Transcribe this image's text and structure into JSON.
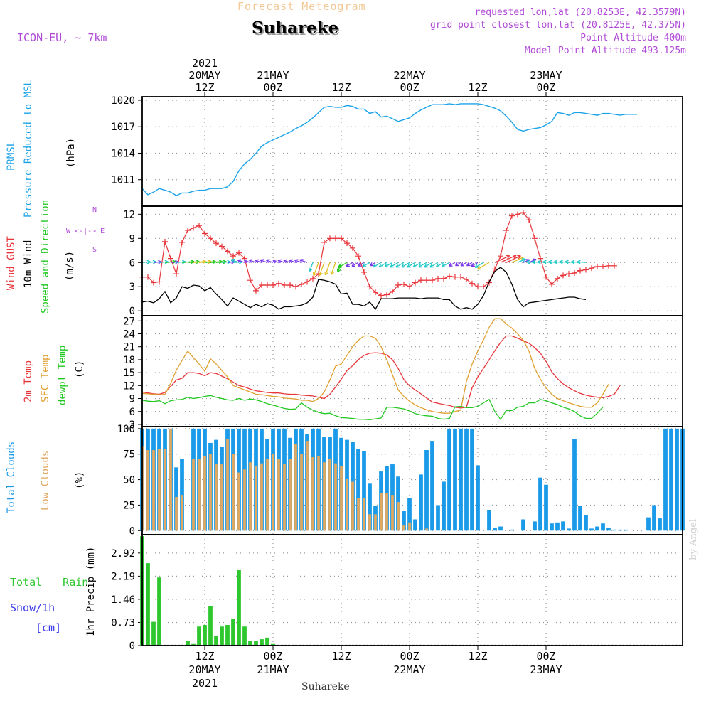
{
  "header": {
    "title": "Forecast Meteogram",
    "station": "Suhareke",
    "model": "ICON-EU, ~ 7km",
    "requested": "requested lon,lat (20.8253E, 42.3579N)",
    "gridpoint": "grid point closest lon,lat (20.8125E, 42.375N)",
    "point_altitude": "Point Altitude 400m",
    "model_altitude": "Model Point Altitude 493.125m"
  },
  "footer": {
    "station": "Suhareke",
    "signature": "by Angel"
  },
  "time_axis": {
    "unit": "hours since 20MAY 00Z",
    "range": [
      1,
      96
    ],
    "top_ticks": [
      {
        "h": 12,
        "lines": [
          "2021",
          "20MAY",
          "12Z"
        ]
      },
      {
        "h": 24,
        "lines": [
          "21MAY",
          "00Z"
        ]
      },
      {
        "h": 36,
        "lines": [
          "12Z"
        ]
      },
      {
        "h": 48,
        "lines": [
          "22MAY",
          "00Z"
        ]
      },
      {
        "h": 60,
        "lines": [
          "12Z"
        ]
      },
      {
        "h": 72,
        "lines": [
          "23MAY",
          "00Z"
        ]
      }
    ],
    "bottom_ticks": [
      {
        "h": 12,
        "lines": [
          "12Z",
          "20MAY",
          "2021"
        ]
      },
      {
        "h": 24,
        "lines": [
          "00Z",
          "21MAY"
        ]
      },
      {
        "h": 36,
        "lines": [
          "12Z"
        ]
      },
      {
        "h": 48,
        "lines": [
          "00Z",
          "22MAY"
        ]
      },
      {
        "h": 60,
        "lines": [
          "12Z"
        ]
      },
      {
        "h": 72,
        "lines": [
          "00Z",
          "23MAY"
        ]
      }
    ]
  },
  "labels": {
    "pressure": [
      "PRMSL",
      "Pressure Reduced to MSL",
      "(hPa)"
    ],
    "wind": [
      "Wind GUST",
      "10m Wind",
      "Speed and Direction",
      "(m/s)"
    ],
    "compass": [
      "N",
      "W <-|-> E",
      "S"
    ],
    "temp": [
      "2m Temp",
      "SFC Temp",
      "dewpt Temp",
      "(C)"
    ],
    "cloud": [
      "Total Clouds",
      "Low Clouds",
      "(%)"
    ],
    "precip_left": [
      "Total Rain",
      "Snow/1h",
      "[cm]"
    ],
    "precip_axis": "1hr Precip (mm)"
  },
  "colors": {
    "pressure": "#1aa3e8",
    "gust": "#e8353a",
    "wind10": "#000000",
    "temp2m": "#e8353a",
    "sfc": "#e0a030",
    "dewpt": "#21c821",
    "total_cloud": "#1a9ae8",
    "low_cloud": "#e0a860",
    "rain": "#2ec82e",
    "snow": "#3a3ae8",
    "label_purple": "#b04ad6",
    "grid": "#9a9a9a"
  },
  "chart_data": [
    {
      "type": "line",
      "name": "pressure",
      "title": "PRMSL Pressure Reduced to MSL",
      "ylabel": "(hPa)",
      "ylim": [
        1008,
        1020.4
      ],
      "yticks": [
        1011,
        1014,
        1017,
        1020
      ],
      "series": [
        {
          "name": "PRMSL",
          "x_start": 1,
          "values": [
            1010.0,
            1009.3,
            1009.6,
            1010.0,
            1009.8,
            1009.6,
            1009.2,
            1009.5,
            1009.5,
            1009.7,
            1009.8,
            1009.8,
            1010.0,
            1010.0,
            1010.0,
            1010.2,
            1010.8,
            1012.0,
            1012.8,
            1013.3,
            1014.0,
            1014.8,
            1015.2,
            1015.5,
            1015.8,
            1016.1,
            1016.4,
            1016.8,
            1017.1,
            1017.5,
            1018.0,
            1018.6,
            1019.2,
            1019.3,
            1019.2,
            1019.2,
            1019.4,
            1019.3,
            1019.0,
            1019.0,
            1018.5,
            1018.7,
            1018.1,
            1018.2,
            1017.9,
            1017.6,
            1017.8,
            1018.0,
            1018.5,
            1018.9,
            1019.2,
            1019.5,
            1019.5,
            1019.5,
            1019.6,
            1019.5,
            1019.6,
            1019.6,
            1019.6,
            1019.6,
            1019.5,
            1019.3,
            1019.1,
            1018.8,
            1018.2,
            1017.5,
            1016.7,
            1016.5,
            1016.7,
            1016.8,
            1016.9,
            1017.2,
            1017.6,
            1018.6,
            1018.5,
            1018.3,
            1018.6,
            1018.6,
            1018.5,
            1018.4,
            1018.3,
            1018.5,
            1018.5,
            1018.4,
            1018.3,
            1018.4,
            1018.4,
            1018.4
          ]
        }
      ]
    },
    {
      "type": "line",
      "name": "wind",
      "title": "Wind GUST / 10m Wind Speed and Direction",
      "ylabel": "(m/s)",
      "ylim": [
        -0.6,
        13
      ],
      "yticks": [
        0,
        3,
        6,
        9,
        12
      ],
      "series": [
        {
          "name": "Wind GUST",
          "x_start": 1,
          "values": [
            4.2,
            4.2,
            3.5,
            3.6,
            8.6,
            6.5,
            4.6,
            8.5,
            10.0,
            10.3,
            10.6,
            9.6,
            9.0,
            8.4,
            8.0,
            7.4,
            6.8,
            7.2,
            6.5,
            3.8,
            2.5,
            3.2,
            3.2,
            3.2,
            3.4,
            3.2,
            3.2,
            3.0,
            3.3,
            3.6,
            4.0,
            4.6,
            8.5,
            9.0,
            9.0,
            9.0,
            8.4,
            7.8,
            6.8,
            4.8,
            3.0,
            2.3,
            1.9,
            2.0,
            2.4,
            3.2,
            3.3,
            3.0,
            3.5,
            3.8,
            3.8,
            3.8,
            4.0,
            4.0,
            4.3,
            4.2,
            4.2,
            3.9,
            3.4,
            3.0,
            3.0,
            3.5,
            5.2,
            6.8,
            10.0,
            11.8,
            12.0,
            12.2,
            11.3,
            9.0,
            6.5,
            4.2,
            3.3,
            4.0,
            4.4,
            4.6,
            4.7,
            5.0,
            5.1,
            5.3,
            5.5,
            5.5,
            5.6,
            5.6
          ]
        },
        {
          "name": "10m Wind",
          "x_start": 1,
          "values": [
            1.1,
            1.2,
            1.0,
            1.5,
            2.4,
            1.0,
            1.6,
            3.0,
            2.8,
            3.2,
            3.1,
            2.5,
            2.9,
            2.1,
            1.4,
            0.6,
            1.6,
            1.2,
            0.8,
            0.4,
            0.8,
            0.5,
            0.9,
            0.7,
            0.2,
            0.5,
            0.5,
            0.6,
            0.7,
            1.0,
            1.7,
            3.9,
            3.8,
            3.6,
            3.3,
            2.1,
            2.2,
            0.8,
            0.8,
            0.6,
            1.1,
            0.2,
            1.5,
            1.5,
            1.5,
            1.6,
            1.6,
            1.6,
            1.6,
            1.5,
            1.6,
            1.6,
            1.6,
            1.4,
            1.4,
            0.6,
            0.2,
            0.4,
            0.2,
            0.8,
            1.9,
            3.6,
            4.9,
            5.4,
            4.8,
            3.3,
            1.4,
            0.5,
            1.0,
            1.1,
            1.2,
            1.3,
            1.4,
            1.5,
            1.6,
            1.7,
            1.7,
            1.5,
            1.4
          ]
        }
      ],
      "arrows": {
        "description": "10m wind direction arrows drawn along ~6 m/s",
        "colors_note": "coloured by speed"
      }
    },
    {
      "type": "line",
      "name": "temperature",
      "title": "2m Temp / SFC Temp / dewpt Temp",
      "ylabel": "(C)",
      "ylim": [
        2.5,
        28.2
      ],
      "yticks": [
        3,
        6,
        9,
        12,
        15,
        18,
        21,
        24,
        27
      ],
      "series": [
        {
          "name": "2m Temp",
          "x_start": 1,
          "values": [
            10.5,
            10.3,
            10.1,
            10.0,
            10.4,
            11.8,
            13.3,
            13.7,
            15.0,
            15.0,
            14.8,
            14.3,
            15.0,
            14.8,
            14.2,
            13.6,
            12.8,
            12.0,
            11.7,
            11.2,
            10.8,
            10.6,
            10.4,
            10.3,
            10.3,
            10.1,
            10.0,
            10.0,
            9.8,
            9.7,
            9.6,
            9.3,
            9.0,
            10.0,
            11.7,
            13.5,
            15.5,
            16.6,
            18.0,
            19.0,
            19.5,
            19.6,
            19.5,
            19.1,
            18.0,
            16.0,
            13.4,
            11.9,
            11.0,
            10.1,
            9.1,
            8.2,
            7.9,
            7.6,
            7.4,
            7.0,
            6.8,
            7.0,
            11.5,
            14.0,
            16.0,
            18.0,
            20.1,
            22.0,
            23.5,
            23.5,
            23.0,
            22.4,
            21.8,
            20.8,
            19.5,
            17.6,
            15.2,
            13.6,
            12.4,
            11.5,
            10.8,
            10.2,
            9.8,
            9.5,
            9.3,
            9.2,
            9.5,
            10.0,
            12.0
          ]
        },
        {
          "name": "SFC Temp",
          "x_start": 1,
          "values": [
            10.2,
            10.1,
            10.0,
            9.9,
            10.0,
            12.5,
            15.6,
            17.8,
            20.0,
            18.5,
            17.0,
            15.3,
            18.2,
            17.0,
            15.5,
            14.0,
            12.0,
            11.5,
            11.0,
            10.5,
            10.0,
            9.9,
            9.7,
            9.5,
            9.4,
            9.1,
            9.0,
            8.9,
            8.6,
            8.6,
            8.3,
            9.0,
            10.5,
            13.3,
            16.5,
            17.0,
            19.0,
            21.0,
            22.5,
            23.5,
            23.5,
            23.0,
            21.0,
            18.0,
            14.5,
            11.0,
            9.5,
            8.4,
            7.5,
            6.9,
            6.4,
            6.0,
            5.8,
            5.6,
            5.6,
            6.0,
            6.3,
            13.0,
            17.0,
            20.0,
            22.6,
            25.5,
            27.5,
            27.5,
            26.3,
            25.3,
            24.0,
            22.5,
            20.0,
            16.0,
            13.5,
            11.5,
            10.0,
            9.0,
            8.5,
            8.0,
            7.6,
            7.2,
            7.0,
            7.0,
            8.0,
            10.0,
            12.3
          ]
        },
        {
          "name": "dewpt Temp",
          "x_start": 1,
          "values": [
            8.6,
            8.4,
            8.3,
            8.5,
            7.8,
            8.5,
            8.7,
            8.8,
            9.3,
            9.0,
            9.2,
            9.5,
            9.7,
            9.3,
            9.0,
            8.7,
            8.6,
            9.0,
            8.6,
            8.9,
            8.7,
            8.3,
            7.8,
            7.5,
            7.1,
            6.7,
            6.5,
            6.6,
            8.0,
            7.0,
            6.3,
            5.8,
            5.5,
            5.6,
            5.0,
            4.6,
            4.5,
            4.4,
            4.2,
            4.2,
            4.1,
            4.3,
            4.5,
            7.0,
            7.0,
            6.8,
            6.6,
            6.1,
            5.5,
            5.2,
            5.0,
            4.9,
            4.4,
            4.2,
            4.4,
            7.1,
            7.2,
            6.9,
            6.9,
            7.2,
            8.0,
            8.8,
            6.0,
            4.2,
            6.2,
            6.2,
            7.0,
            7.2,
            8.0,
            8.0,
            8.8,
            8.5,
            8.0,
            7.6,
            7.0,
            6.6,
            6.0,
            5.0,
            4.4,
            4.4,
            5.6,
            7.0
          ]
        }
      ]
    },
    {
      "type": "bar",
      "name": "clouds",
      "title": "Total Clouds / Low Clouds",
      "ylabel": "(%)",
      "ylim": [
        -4,
        102
      ],
      "yticks": [
        0,
        25,
        50,
        75,
        100
      ],
      "series": [
        {
          "name": "Total Clouds",
          "x_start": 1,
          "values": [
            100,
            100,
            100,
            100,
            100,
            100,
            62,
            70,
            0,
            100,
            100,
            100,
            86,
            89,
            82,
            100,
            100,
            100,
            100,
            100,
            100,
            100,
            90,
            100,
            100,
            100,
            91,
            100,
            100,
            95,
            100,
            100,
            92,
            92,
            100,
            91,
            89,
            87,
            80,
            78,
            46,
            24,
            58,
            63,
            65,
            53,
            19,
            32,
            11,
            55,
            79,
            88,
            25,
            48,
            100,
            100,
            100,
            100,
            100,
            64,
            0,
            20,
            3,
            4,
            0,
            1,
            0,
            11,
            0,
            9,
            52,
            45,
            7,
            8,
            9,
            2,
            90,
            24,
            15,
            2,
            4,
            7,
            3,
            1,
            1,
            1,
            0,
            0,
            0,
            13,
            25,
            12,
            100,
            100,
            100,
            100
          ]
        },
        {
          "name": "Low Clouds",
          "x_start": 1,
          "values": [
            83,
            79,
            79,
            80,
            80,
            100,
            33,
            35,
            0,
            70,
            70,
            73,
            75,
            65,
            65,
            90,
            75,
            57,
            60,
            67,
            63,
            66,
            70,
            75,
            70,
            65,
            70,
            85,
            75,
            88,
            72,
            73,
            67,
            70,
            66,
            63,
            51,
            48,
            32,
            32,
            16,
            16,
            37,
            37,
            35,
            28,
            5,
            8,
            0,
            0,
            2,
            0,
            0,
            0,
            0,
            0,
            0,
            0,
            0,
            0,
            0,
            0,
            0,
            0,
            0,
            0,
            0,
            0,
            0,
            0,
            0,
            0,
            0,
            0,
            0,
            0,
            0,
            0,
            0,
            0,
            0,
            0,
            0,
            0,
            0,
            0,
            0,
            0,
            0,
            0,
            0,
            0,
            0,
            0,
            0,
            0
          ]
        }
      ]
    },
    {
      "type": "bar",
      "name": "precipitation",
      "title": "Total Rain / Snow 1h",
      "ylabel": "1hr Precip (mm)",
      "ylim": [
        0,
        3.5
      ],
      "yticks": [
        0,
        0.73,
        1.46,
        2.19,
        2.92
      ],
      "series": [
        {
          "name": "Total Rain",
          "x_start": 1,
          "values": [
            3.45,
            2.6,
            0.75,
            2.15,
            0,
            0,
            0,
            0,
            0.15,
            0.05,
            0.6,
            0.65,
            1.25,
            0.3,
            0.6,
            0.65,
            0.85,
            2.4,
            0.6,
            0.15,
            0.15,
            0.2,
            0.25,
            0.05,
            0,
            0,
            0,
            0,
            0,
            0,
            0,
            0,
            0,
            0,
            0,
            0,
            0,
            0,
            0,
            0,
            0,
            0,
            0,
            0,
            0,
            0,
            0,
            0,
            0,
            0,
            0,
            0,
            0,
            0,
            0,
            0,
            0,
            0,
            0,
            0,
            0,
            0,
            0,
            0,
            0,
            0,
            0,
            0,
            0,
            0,
            0,
            0,
            0,
            0,
            0,
            0,
            0,
            0,
            0,
            0,
            0,
            0,
            0,
            0,
            0,
            0,
            0,
            0,
            0,
            0,
            0,
            0,
            0,
            0,
            0,
            0
          ]
        },
        {
          "name": "Snow/1h",
          "x_start": 1,
          "values": []
        }
      ]
    }
  ]
}
